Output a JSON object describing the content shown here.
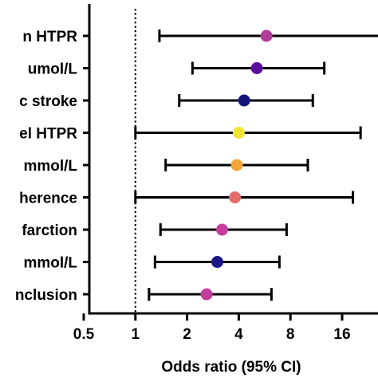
{
  "chart_data": {
    "type": "scatter",
    "subtype": "forest-plot",
    "title": "",
    "xlabel": "Odds ratio (95% CI)",
    "ylabel": "",
    "x_scale": "log2",
    "xlim": [
      0.5,
      32
    ],
    "x_ticks": [
      0.5,
      1,
      2,
      4,
      8,
      16
    ],
    "x_tick_labels": [
      "0.5",
      "1",
      "2",
      "4",
      "8",
      "16"
    ],
    "reference_line": 1,
    "grid": false,
    "legend": "none",
    "rows": [
      {
        "label": "n HTPR",
        "or": 5.8,
        "ci_low": 1.38,
        "ci_high": 29.5,
        "color": "#b23b9a"
      },
      {
        "label": "umol/L",
        "or": 5.1,
        "ci_low": 2.15,
        "ci_high": 12.6,
        "color": "#5c0f9e"
      },
      {
        "label": "c stroke",
        "or": 4.3,
        "ci_low": 1.8,
        "ci_high": 10.8,
        "color": "#12137a"
      },
      {
        "label": "el HTPR",
        "or": 4.0,
        "ci_low": 1.0,
        "ci_high": 20.5,
        "color": "#f2e32e"
      },
      {
        "label": "mmol/L",
        "or": 3.9,
        "ci_low": 1.5,
        "ci_high": 10.1,
        "color": "#f3a63c"
      },
      {
        "label": "herence",
        "or": 3.8,
        "ci_low": 1.0,
        "ci_high": 18.5,
        "color": "#e56b6b"
      },
      {
        "label": "farction",
        "or": 3.2,
        "ci_low": 1.4,
        "ci_high": 7.6,
        "color": "#c63da0"
      },
      {
        "label": "mmol/L",
        "or": 3.0,
        "ci_low": 1.3,
        "ci_high": 6.9,
        "color": "#1c1688"
      },
      {
        "label": "nclusion",
        "or": 2.6,
        "ci_low": 1.2,
        "ci_high": 6.2,
        "color": "#c33d9d"
      }
    ]
  }
}
